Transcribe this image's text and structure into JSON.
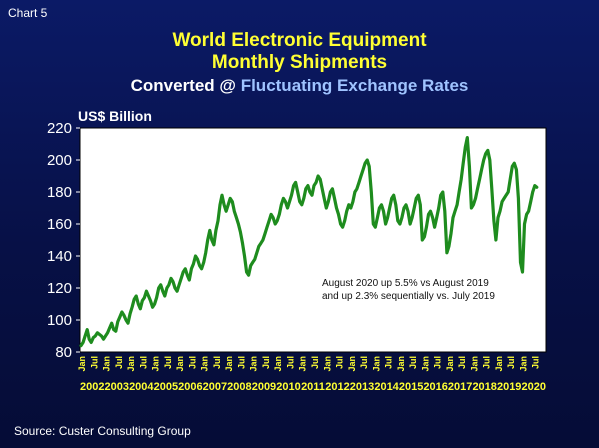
{
  "header": {
    "chart_label": "Chart 5",
    "title_line1": "World Electronic Equipment",
    "title_line2": "Monthly Shipments",
    "subtitle_prefix": "Converted @ ",
    "subtitle_accent": "Fluctuating Exchange Rates"
  },
  "footer": {
    "source": "Source: Custer Consulting Group"
  },
  "colors": {
    "line": "#1e8c1e",
    "title": "#ffff33",
    "tick_year": "#ffff33",
    "background": "#071046"
  },
  "chart_data": {
    "type": "line",
    "ylabel": "US$ Billion",
    "ylim": [
      80,
      220
    ],
    "yticks": [
      80,
      100,
      120,
      140,
      160,
      180,
      200,
      220
    ],
    "grid": false,
    "annotation": [
      "August 2020 up 5.5% vs August 2019",
      "and up 2.3% sequentially vs. July 2019"
    ],
    "years": [
      "2002",
      "2003",
      "2004",
      "2005",
      "2006",
      "2007",
      "2008",
      "2009",
      "2010",
      "2011",
      "2012",
      "2013",
      "2014",
      "2015",
      "2016",
      "2017",
      "2018",
      "2019",
      "2020"
    ],
    "month_tick_labels": [
      "Jan",
      "Jul"
    ],
    "series": [
      {
        "values": [
          84,
          86,
          90,
          94,
          88,
          86,
          89,
          90,
          92,
          91,
          90,
          88,
          90,
          92,
          95,
          98,
          94,
          93,
          99,
          102,
          105,
          103,
          100,
          98,
          104,
          108,
          113,
          115,
          110,
          107,
          112,
          114,
          118,
          115,
          112,
          108,
          110,
          114,
          120,
          122,
          118,
          115,
          120,
          122,
          126,
          124,
          120,
          118,
          122,
          126,
          130,
          132,
          128,
          125,
          132,
          135,
          140,
          138,
          134,
          132,
          136,
          142,
          150,
          156,
          150,
          147,
          156,
          162,
          172,
          178,
          172,
          168,
          172,
          176,
          174,
          168,
          164,
          160,
          155,
          148,
          140,
          130,
          128,
          134,
          136,
          138,
          142,
          146,
          148,
          150,
          154,
          158,
          162,
          166,
          164,
          160,
          162,
          166,
          172,
          176,
          174,
          170,
          174,
          178,
          184,
          186,
          180,
          174,
          172,
          176,
          182,
          184,
          180,
          178,
          184,
          186,
          190,
          188,
          182,
          176,
          170,
          174,
          180,
          182,
          176,
          170,
          166,
          160,
          158,
          162,
          168,
          172,
          170,
          174,
          180,
          182,
          186,
          190,
          194,
          198,
          200,
          196,
          180,
          160,
          158,
          164,
          170,
          172,
          168,
          160,
          164,
          170,
          176,
          178,
          172,
          162,
          160,
          164,
          170,
          172,
          168,
          160,
          164,
          170,
          176,
          178,
          172,
          150,
          152,
          158,
          166,
          168,
          164,
          158,
          164,
          170,
          178,
          180,
          168,
          142,
          146,
          154,
          164,
          168,
          172,
          180,
          188,
          198,
          208,
          214,
          196,
          170,
          172,
          176,
          182,
          188,
          194,
          200,
          204,
          206,
          200,
          182,
          162,
          150,
          164,
          168,
          174,
          176,
          178,
          180,
          188,
          196,
          198,
          194,
          176,
          136,
          130,
          160,
          166,
          168,
          174,
          180,
          184,
          183
        ]
      }
    ]
  }
}
